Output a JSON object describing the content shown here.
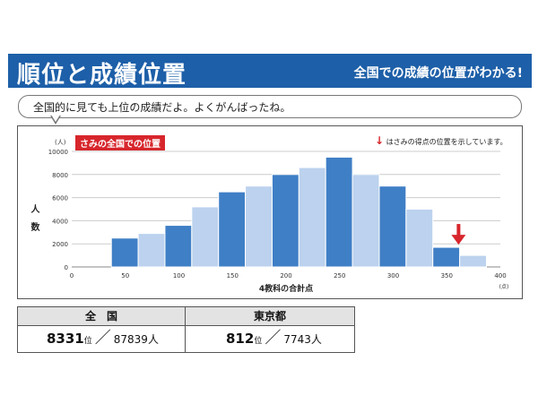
{
  "header": {
    "title": "順位と成績位置",
    "subtitle": "全国での成績の位置がわかる!"
  },
  "bubble": {
    "text": "全国的に見ても上位の成績だよ。よくがんばったね。"
  },
  "legend": {
    "tag": "さみの全国での位置",
    "note": "はさみの得点の位置を示しています。",
    "arrow_color": "#d7262c"
  },
  "chart_data": {
    "type": "bar",
    "ylabel": "人数",
    "yunit": "(人)",
    "xlabel": "4教科の合計点",
    "xunit": "(点)",
    "xlim": [
      0,
      400
    ],
    "ylim": [
      0,
      10000
    ],
    "yticks": [
      0,
      2000,
      4000,
      6000,
      8000,
      10000
    ],
    "xticks": [
      0,
      50,
      100,
      150,
      200,
      250,
      300,
      350,
      400
    ],
    "bins": [
      {
        "x0": 37,
        "x1": 62,
        "value": 2500,
        "shade": "dark"
      },
      {
        "x0": 62,
        "x1": 87,
        "value": 2900,
        "shade": "light"
      },
      {
        "x0": 87,
        "x1": 112,
        "value": 3600,
        "shade": "dark"
      },
      {
        "x0": 112,
        "x1": 137,
        "value": 5200,
        "shade": "light"
      },
      {
        "x0": 137,
        "x1": 162,
        "value": 6500,
        "shade": "dark"
      },
      {
        "x0": 162,
        "x1": 187,
        "value": 7000,
        "shade": "light"
      },
      {
        "x0": 187,
        "x1": 212,
        "value": 8000,
        "shade": "dark"
      },
      {
        "x0": 212,
        "x1": 237,
        "value": 8600,
        "shade": "light"
      },
      {
        "x0": 237,
        "x1": 262,
        "value": 9500,
        "shade": "dark"
      },
      {
        "x0": 262,
        "x1": 287,
        "value": 8000,
        "shade": "light"
      },
      {
        "x0": 287,
        "x1": 312,
        "value": 7000,
        "shade": "dark"
      },
      {
        "x0": 312,
        "x1": 337,
        "value": 5000,
        "shade": "light"
      },
      {
        "x0": 337,
        "x1": 362,
        "value": 1700,
        "shade": "dark"
      },
      {
        "x0": 362,
        "x1": 387,
        "value": 1000,
        "shade": "light"
      }
    ],
    "marker_x": 361,
    "grid": true,
    "colors": {
      "dark": "#3f7fc6",
      "light": "#bcd2ee",
      "grid": "#cccccc"
    }
  },
  "table": {
    "nation_header": "全　国",
    "tokyo_header": "東京都",
    "nation_rank": "8331",
    "nation_total": "87839人",
    "tokyo_rank": "812",
    "tokyo_total": "7743人",
    "rank_suffix": "位"
  }
}
